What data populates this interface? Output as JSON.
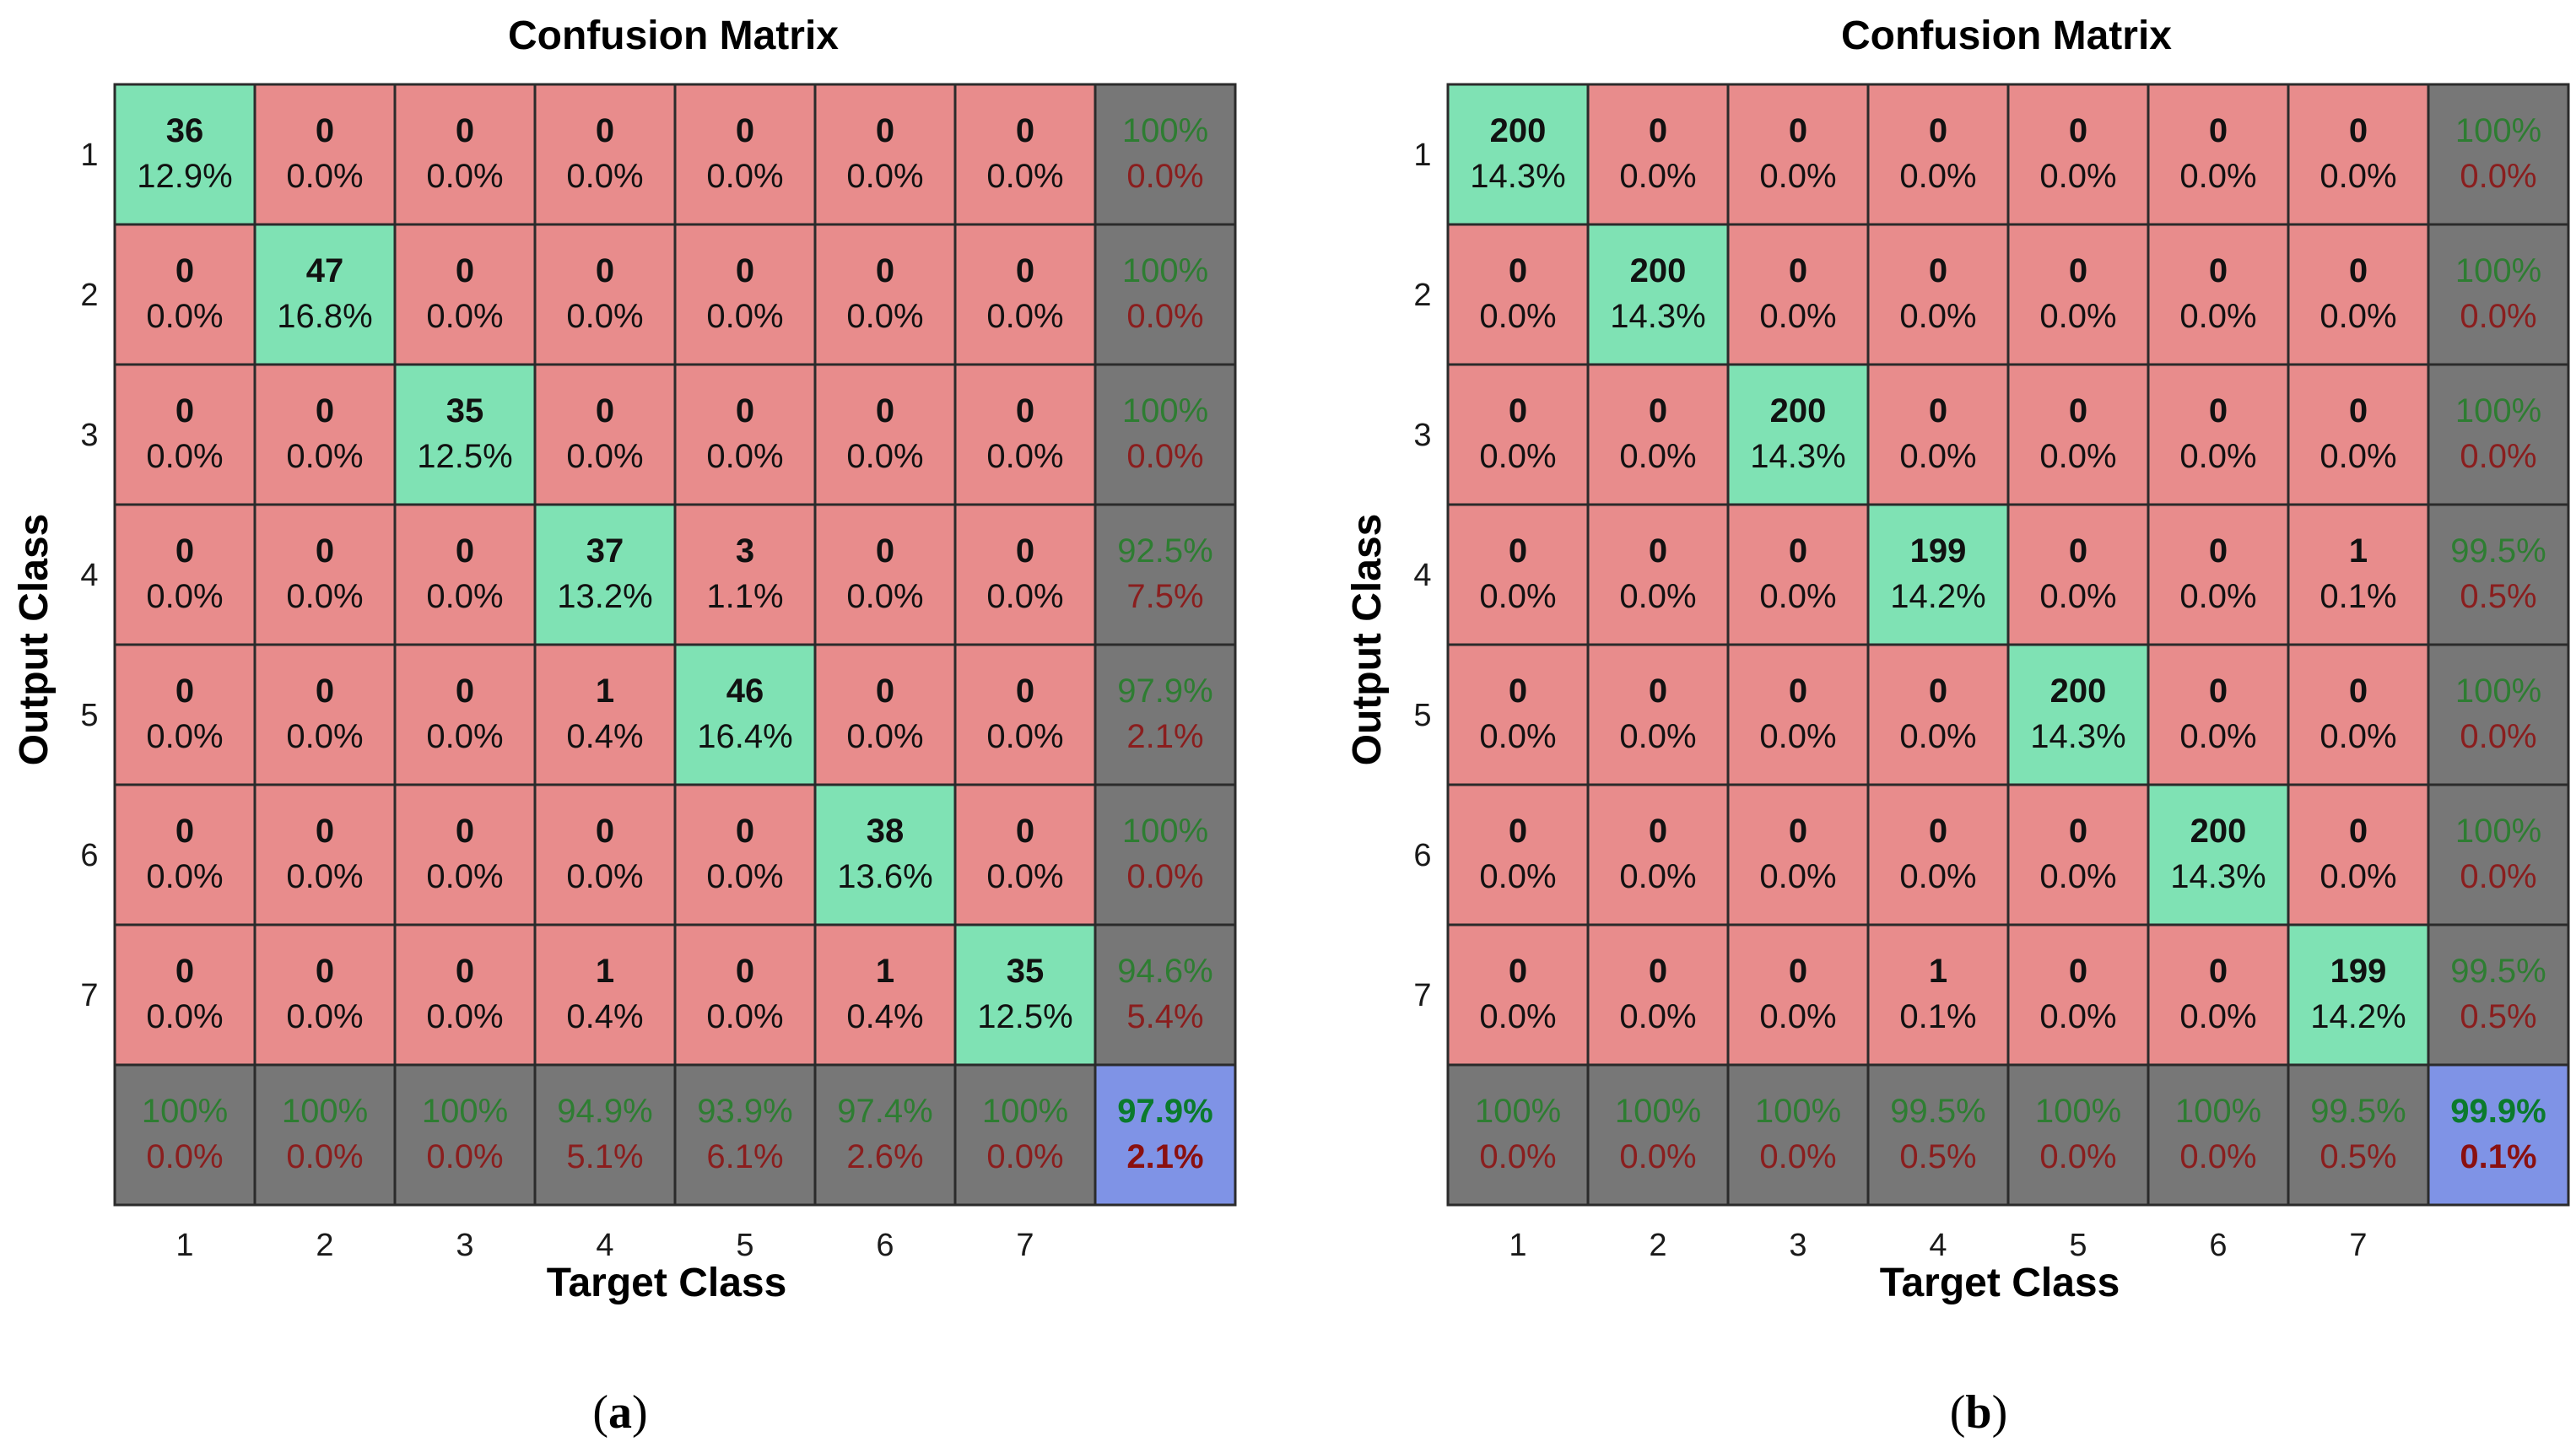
{
  "colors": {
    "diagonal": "#7fe2b4",
    "offdiagonal": "#e88c8c",
    "summary": "#777777",
    "total": "#7f93e6",
    "grid_line": "#2b2b2b",
    "accuracy_text": "#2e7d32",
    "error_text": "#8a1e1e",
    "total_top_text": "#0b7a2c",
    "total_bot_text": "#8a1010"
  },
  "chart_data": [
    {
      "type": "heatmap",
      "title": "Confusion Matrix",
      "xlabel": "Target Class",
      "ylabel": "Output Class",
      "caption_parts": [
        "(",
        "a",
        ")"
      ],
      "classes": [
        "1",
        "2",
        "3",
        "4",
        "5",
        "6",
        "7"
      ],
      "counts": [
        [
          36,
          0,
          0,
          0,
          0,
          0,
          0
        ],
        [
          0,
          47,
          0,
          0,
          0,
          0,
          0
        ],
        [
          0,
          0,
          35,
          0,
          0,
          0,
          0
        ],
        [
          0,
          0,
          0,
          37,
          3,
          0,
          0
        ],
        [
          0,
          0,
          0,
          1,
          46,
          0,
          0
        ],
        [
          0,
          0,
          0,
          0,
          0,
          38,
          0
        ],
        [
          0,
          0,
          0,
          1,
          0,
          1,
          35
        ]
      ],
      "percents": [
        [
          "12.9%",
          "0.0%",
          "0.0%",
          "0.0%",
          "0.0%",
          "0.0%",
          "0.0%"
        ],
        [
          "0.0%",
          "16.8%",
          "0.0%",
          "0.0%",
          "0.0%",
          "0.0%",
          "0.0%"
        ],
        [
          "0.0%",
          "0.0%",
          "12.5%",
          "0.0%",
          "0.0%",
          "0.0%",
          "0.0%"
        ],
        [
          "0.0%",
          "0.0%",
          "0.0%",
          "13.2%",
          "1.1%",
          "0.0%",
          "0.0%"
        ],
        [
          "0.0%",
          "0.0%",
          "0.0%",
          "0.4%",
          "16.4%",
          "0.0%",
          "0.0%"
        ],
        [
          "0.0%",
          "0.0%",
          "0.0%",
          "0.0%",
          "0.0%",
          "13.6%",
          "0.0%"
        ],
        [
          "0.0%",
          "0.0%",
          "0.0%",
          "0.4%",
          "0.0%",
          "0.4%",
          "12.5%"
        ]
      ],
      "row_summary": [
        [
          "100%",
          "0.0%"
        ],
        [
          "100%",
          "0.0%"
        ],
        [
          "100%",
          "0.0%"
        ],
        [
          "92.5%",
          "7.5%"
        ],
        [
          "97.9%",
          "2.1%"
        ],
        [
          "100%",
          "0.0%"
        ],
        [
          "94.6%",
          "5.4%"
        ]
      ],
      "col_summary": [
        [
          "100%",
          "0.0%"
        ],
        [
          "100%",
          "0.0%"
        ],
        [
          "100%",
          "0.0%"
        ],
        [
          "94.9%",
          "5.1%"
        ],
        [
          "93.9%",
          "6.1%"
        ],
        [
          "97.4%",
          "2.6%"
        ],
        [
          "100%",
          "0.0%"
        ]
      ],
      "total": [
        "97.9%",
        "2.1%"
      ]
    },
    {
      "type": "heatmap",
      "title": "Confusion Matrix",
      "xlabel": "Target Class",
      "ylabel": "Output Class",
      "caption_parts": [
        "(",
        "b",
        ")"
      ],
      "classes": [
        "1",
        "2",
        "3",
        "4",
        "5",
        "6",
        "7"
      ],
      "counts": [
        [
          200,
          0,
          0,
          0,
          0,
          0,
          0
        ],
        [
          0,
          200,
          0,
          0,
          0,
          0,
          0
        ],
        [
          0,
          0,
          200,
          0,
          0,
          0,
          0
        ],
        [
          0,
          0,
          0,
          199,
          0,
          0,
          1
        ],
        [
          0,
          0,
          0,
          0,
          200,
          0,
          0
        ],
        [
          0,
          0,
          0,
          0,
          0,
          200,
          0
        ],
        [
          0,
          0,
          0,
          1,
          0,
          0,
          199
        ]
      ],
      "percents": [
        [
          "14.3%",
          "0.0%",
          "0.0%",
          "0.0%",
          "0.0%",
          "0.0%",
          "0.0%"
        ],
        [
          "0.0%",
          "14.3%",
          "0.0%",
          "0.0%",
          "0.0%",
          "0.0%",
          "0.0%"
        ],
        [
          "0.0%",
          "0.0%",
          "14.3%",
          "0.0%",
          "0.0%",
          "0.0%",
          "0.0%"
        ],
        [
          "0.0%",
          "0.0%",
          "0.0%",
          "14.2%",
          "0.0%",
          "0.0%",
          "0.1%"
        ],
        [
          "0.0%",
          "0.0%",
          "0.0%",
          "0.0%",
          "14.3%",
          "0.0%",
          "0.0%"
        ],
        [
          "0.0%",
          "0.0%",
          "0.0%",
          "0.0%",
          "0.0%",
          "14.3%",
          "0.0%"
        ],
        [
          "0.0%",
          "0.0%",
          "0.0%",
          "0.1%",
          "0.0%",
          "0.0%",
          "14.2%"
        ]
      ],
      "row_summary": [
        [
          "100%",
          "0.0%"
        ],
        [
          "100%",
          "0.0%"
        ],
        [
          "100%",
          "0.0%"
        ],
        [
          "99.5%",
          "0.5%"
        ],
        [
          "100%",
          "0.0%"
        ],
        [
          "100%",
          "0.0%"
        ],
        [
          "99.5%",
          "0.5%"
        ]
      ],
      "col_summary": [
        [
          "100%",
          "0.0%"
        ],
        [
          "100%",
          "0.0%"
        ],
        [
          "100%",
          "0.0%"
        ],
        [
          "99.5%",
          "0.5%"
        ],
        [
          "100%",
          "0.0%"
        ],
        [
          "100%",
          "0.0%"
        ],
        [
          "99.5%",
          "0.5%"
        ]
      ],
      "total": [
        "99.9%",
        "0.1%"
      ]
    }
  ]
}
